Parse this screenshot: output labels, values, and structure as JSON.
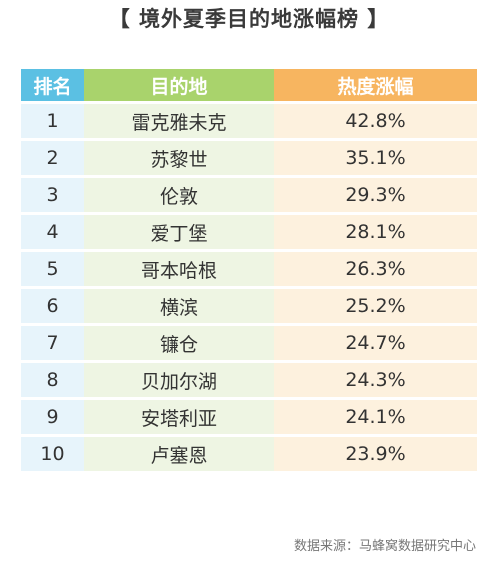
{
  "title": "【 境外夏季目的地涨幅榜 】",
  "table": {
    "headers": {
      "rank": "排名",
      "destination": "目的地",
      "heat_increase": "热度涨幅"
    },
    "rows": [
      {
        "rank": "1",
        "destination": "雷克雅未克",
        "heat_increase": "42.8%"
      },
      {
        "rank": "2",
        "destination": "苏黎世",
        "heat_increase": "35.1%"
      },
      {
        "rank": "3",
        "destination": "伦敦",
        "heat_increase": "29.3%"
      },
      {
        "rank": "4",
        "destination": "爱丁堡",
        "heat_increase": "28.1%"
      },
      {
        "rank": "5",
        "destination": "哥本哈根",
        "heat_increase": "26.3%"
      },
      {
        "rank": "6",
        "destination": "横滨",
        "heat_increase": "25.2%"
      },
      {
        "rank": "7",
        "destination": "镰仓",
        "heat_increase": "24.7%"
      },
      {
        "rank": "8",
        "destination": "贝加尔湖",
        "heat_increase": "24.3%"
      },
      {
        "rank": "9",
        "destination": "安塔利亚",
        "heat_increase": "24.1%"
      },
      {
        "rank": "10",
        "destination": "卢塞恩",
        "heat_increase": "23.9%"
      }
    ]
  },
  "source": "数据来源：马蜂窝数据研究中心",
  "colors": {
    "rank_header": "#5bc0e3",
    "destination_header": "#a9d36c",
    "heat_header": "#f7b560",
    "rank_cell": "#e7f4fb",
    "destination_cell": "#eef5e3",
    "heat_cell": "#fdf1de"
  }
}
